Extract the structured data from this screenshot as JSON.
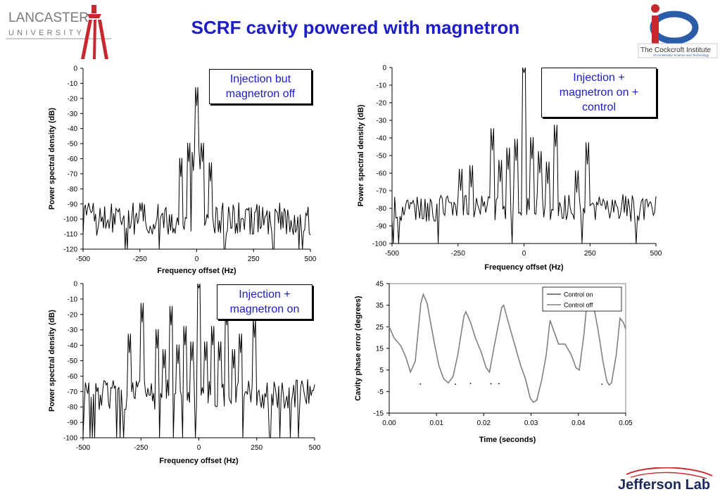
{
  "page": {
    "title": "SCRF cavity powered with magnetron",
    "logos": {
      "left_line1": "LANCASTER",
      "left_line2": "UNIVERSITY",
      "right_name": "The Cockcroft Institute",
      "right_sub": "of Accelerator Science and Technology",
      "bottom": "Jefferson Lab"
    },
    "colors": {
      "title": "#1c1cc8",
      "callout_text": "#1c1cc8",
      "trace": "#000000",
      "trace_gray": "#808080"
    }
  },
  "chart_data": [
    {
      "type": "line",
      "callout": "Injection but magnetron off",
      "xlabel": "Frequency offset (Hz)",
      "ylabel": "Power spectral density (dB)",
      "xlim": [
        -500,
        500
      ],
      "ylim": [
        -120,
        0
      ],
      "xticks": [
        -500,
        -250,
        0,
        250,
        500
      ],
      "yticks": [
        0,
        -10,
        -20,
        -30,
        -40,
        -50,
        -60,
        -70,
        -80,
        -90,
        -100,
        -110,
        -120
      ],
      "series": [
        {
          "peaks": [
            [
              0,
              -25
            ],
            [
              -35,
              -62
            ],
            [
              25,
              -62
            ],
            [
              -70,
              -72
            ],
            [
              60,
              -75
            ],
            [
              -15,
              -68
            ],
            [
              15,
              -67
            ]
          ],
          "noise_floor": -100,
          "floor_clip": -120,
          "noise_amp": 11,
          "noise_step": 5
        }
      ]
    },
    {
      "type": "line",
      "callout": "Injection + magnetron on + control",
      "xlabel": "Frequency offset (Hz)",
      "ylabel": "Power spectral density (dB)",
      "xlim": [
        -500,
        500
      ],
      "ylim": [
        -100,
        0
      ],
      "xticks": [
        -500,
        -250,
        0,
        250,
        500
      ],
      "yticks": [
        0,
        -10,
        -20,
        -30,
        -40,
        -50,
        -60,
        -70,
        -80,
        -90,
        -100
      ],
      "series": [
        {
          "peaks": [
            [
              0,
              -3
            ],
            [
              -120,
              -47
            ],
            [
              120,
              -45
            ],
            [
              240,
              -55
            ],
            [
              -30,
              -53
            ],
            [
              30,
              -52
            ],
            [
              -60,
              -58
            ],
            [
              60,
              -60
            ],
            [
              -90,
              -65
            ],
            [
              90,
              -66
            ],
            [
              -240,
              -70
            ],
            [
              -200,
              -68
            ],
            [
              200,
              -71
            ]
          ],
          "noise_floor": -80,
          "floor_clip": -100,
          "noise_amp": 8,
          "noise_step": 5
        }
      ]
    },
    {
      "type": "line",
      "callout": "Injection + magnetron on",
      "xlabel": "Frequency offset (Hz)",
      "ylabel": "Power spectral density (dB)",
      "xlim": [
        -500,
        500
      ],
      "ylim": [
        -100,
        0
      ],
      "xticks": [
        -500,
        -250,
        0,
        250,
        500
      ],
      "yticks": [
        0,
        -10,
        -20,
        -30,
        -40,
        -50,
        -60,
        -70,
        -80,
        -90,
        -100
      ],
      "series": [
        {
          "peaks": [
            [
              0,
              -3
            ],
            [
              -120,
              -27
            ],
            [
              120,
              -27
            ],
            [
              -245,
              -25
            ],
            [
              240,
              -35
            ],
            [
              -60,
              -40
            ],
            [
              60,
              -40
            ],
            [
              -180,
              -42
            ],
            [
              180,
              -45
            ],
            [
              -300,
              -45
            ],
            [
              -30,
              -50
            ],
            [
              30,
              -50
            ],
            [
              -90,
              -52
            ],
            [
              90,
              -50
            ],
            [
              -150,
              -55
            ],
            [
              150,
              -55
            ]
          ],
          "noise_floor": -72,
          "floor_clip": -100,
          "noise_amp": 10,
          "noise_step": 5
        }
      ]
    },
    {
      "type": "line",
      "xlabel": "Time (seconds)",
      "ylabel": "Cavity phase error (degrees)",
      "xlim": [
        0,
        0.05
      ],
      "ylim": [
        -15,
        45
      ],
      "xticks": [
        0.0,
        0.01,
        0.02,
        0.03,
        0.04,
        0.05
      ],
      "xtick_labels": [
        "0.00",
        "0.01",
        "0.02",
        "0.03",
        "0.04",
        "0.05"
      ],
      "yticks": [
        45,
        35,
        25,
        15,
        5,
        -5,
        -15
      ],
      "legend": "top-right",
      "series": [
        {
          "name": "Control on",
          "points": [
            [
              0.0066,
              -1.5
            ],
            [
              0.014,
              -1.6
            ],
            [
              0.0172,
              -1.2
            ],
            [
              0.0215,
              -1.4
            ],
            [
              0.0232,
              -1.3
            ],
            [
              0.045,
              -1.6
            ]
          ]
        },
        {
          "name": "Control off",
          "points": [
            [
              0.0,
              25
            ],
            [
              0.001,
              20
            ],
            [
              0.0025,
              16
            ],
            [
              0.0035,
              11
            ],
            [
              0.0045,
              4
            ],
            [
              0.0055,
              9
            ],
            [
              0.0067,
              36
            ],
            [
              0.0072,
              40
            ],
            [
              0.008,
              36
            ],
            [
              0.0095,
              18
            ],
            [
              0.0105,
              7
            ],
            [
              0.0115,
              1
            ],
            [
              0.0125,
              -1
            ],
            [
              0.0135,
              2
            ],
            [
              0.0145,
              12
            ],
            [
              0.0158,
              30
            ],
            [
              0.0162,
              32
            ],
            [
              0.0172,
              27
            ],
            [
              0.0182,
              20
            ],
            [
              0.0195,
              13
            ],
            [
              0.0205,
              6
            ],
            [
              0.0212,
              4
            ],
            [
              0.0222,
              16
            ],
            [
              0.0238,
              34
            ],
            [
              0.0242,
              35
            ],
            [
              0.0252,
              27
            ],
            [
              0.0265,
              17
            ],
            [
              0.0278,
              7
            ],
            [
              0.0288,
              1
            ],
            [
              0.0298,
              -8
            ],
            [
              0.0305,
              -10
            ],
            [
              0.0312,
              -9
            ],
            [
              0.0322,
              0
            ],
            [
              0.0332,
              12
            ],
            [
              0.034,
              28
            ],
            [
              0.0345,
              25
            ],
            [
              0.0358,
              17
            ],
            [
              0.0372,
              17
            ],
            [
              0.0385,
              12
            ],
            [
              0.0395,
              6
            ],
            [
              0.0402,
              5
            ],
            [
              0.0412,
              22
            ],
            [
              0.042,
              41
            ],
            [
              0.0425,
              42
            ],
            [
              0.0432,
              35
            ],
            [
              0.0442,
              23
            ],
            [
              0.0452,
              9
            ],
            [
              0.046,
              0
            ],
            [
              0.0465,
              -2
            ],
            [
              0.047,
              -1
            ],
            [
              0.048,
              12
            ],
            [
              0.0488,
              29
            ],
            [
              0.0495,
              27
            ],
            [
              0.05,
              24
            ]
          ]
        }
      ]
    }
  ]
}
